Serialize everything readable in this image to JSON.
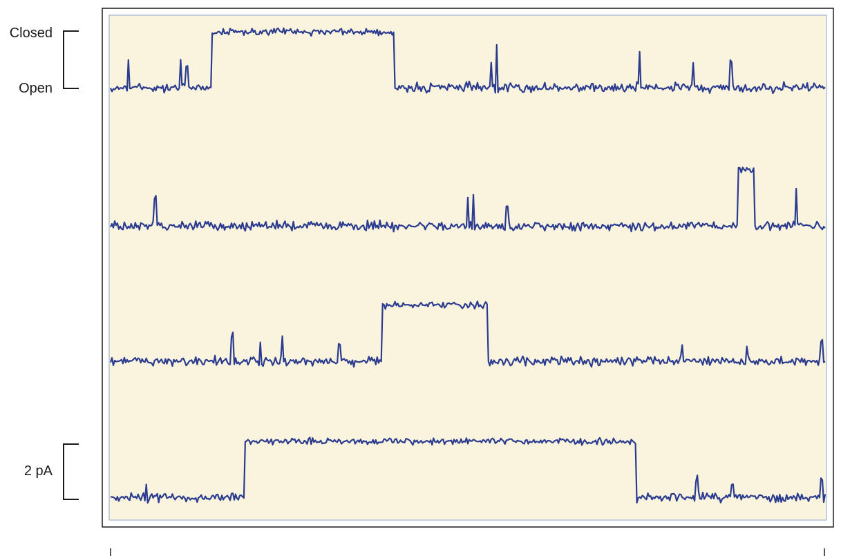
{
  "labels": {
    "closed": "Closed",
    "open": "Open",
    "scale": "2 pA"
  },
  "colors": {
    "trace": "#2b3c8f",
    "panel_fill": "#faf4df",
    "panel_border": "#9fb3d6",
    "frame": "#1a1a1a"
  },
  "chart_data": {
    "type": "line",
    "title": "",
    "xlabel": "",
    "ylabel": "",
    "y_units": "pA",
    "scale_bar_pA": 2,
    "x_range": [
      0,
      1
    ],
    "series": [
      {
        "closed_level_pA": 2,
        "open_level_pA": 0,
        "closed_intervals": [
          [
            0.142,
            0.398
          ]
        ],
        "spikes": [
          [
            0.025,
            1.0
          ],
          [
            0.098,
            1.0
          ],
          [
            0.107,
            0.8
          ],
          [
            0.533,
            0.9
          ],
          [
            0.54,
            1.4
          ],
          [
            0.74,
            1.3
          ],
          [
            0.815,
            0.8
          ],
          [
            0.868,
            0.9
          ]
        ]
      },
      {
        "closed_level_pA": 2,
        "open_level_pA": 0,
        "closed_intervals": [
          [
            0.878,
            0.9
          ]
        ],
        "spikes": [
          [
            0.062,
            1.0
          ],
          [
            0.5,
            1.0
          ],
          [
            0.508,
            1.1
          ],
          [
            0.555,
            0.7
          ],
          [
            0.96,
            1.3
          ]
        ]
      },
      {
        "closed_level_pA": 2,
        "open_level_pA": 0,
        "closed_intervals": [
          [
            0.38,
            0.528
          ]
        ],
        "spikes": [
          [
            0.17,
            0.9
          ],
          [
            0.21,
            0.8
          ],
          [
            0.24,
            0.8
          ],
          [
            0.32,
            0.7
          ],
          [
            0.8,
            0.6
          ],
          [
            0.89,
            0.6
          ],
          [
            0.995,
            0.6
          ]
        ]
      },
      {
        "closed_level_pA": 2,
        "open_level_pA": 0,
        "closed_intervals": [
          [
            0.188,
            0.735
          ]
        ],
        "spikes": [
          [
            0.05,
            0.5
          ],
          [
            0.82,
            0.6
          ],
          [
            0.87,
            0.5
          ],
          [
            0.995,
            0.6
          ]
        ]
      }
    ]
  }
}
